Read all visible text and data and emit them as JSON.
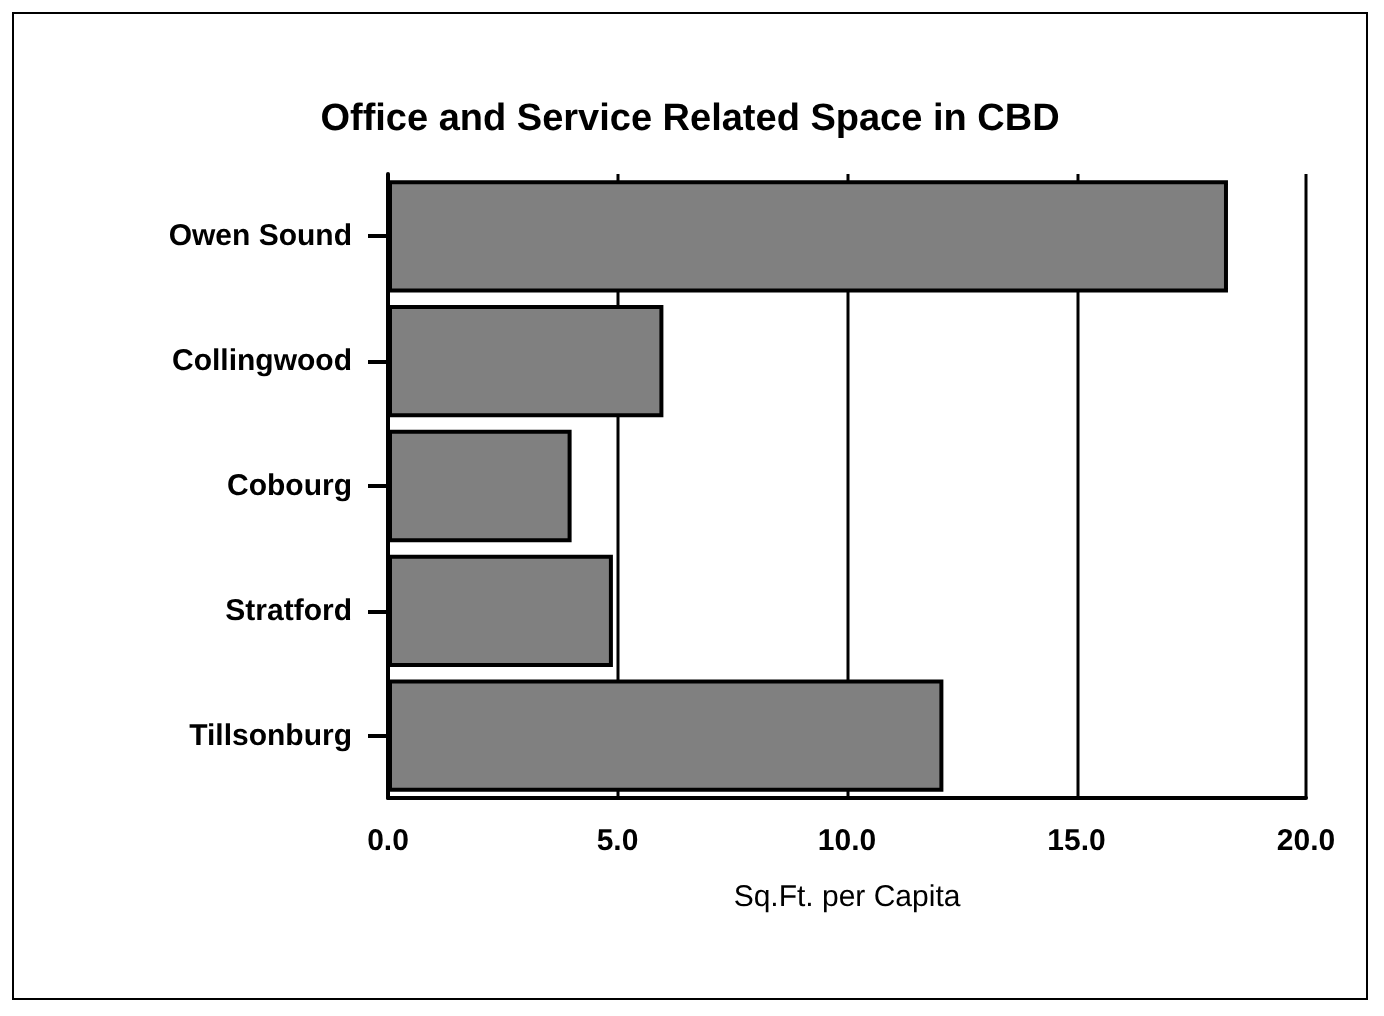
{
  "chart_data": {
    "type": "bar",
    "orientation": "horizontal",
    "title": "Office and Service Related Space in CBD",
    "xlabel": "Sq.Ft. per Capita",
    "categories": [
      "Owen Sound",
      "Collingwood",
      "Cobourg",
      "Stratford",
      "Tillsonburg"
    ],
    "values": [
      18.3,
      6.0,
      4.0,
      4.9,
      12.1
    ],
    "color": "#808080",
    "xlim": [
      0,
      20
    ],
    "xticks": [
      {
        "value": 0,
        "label": "0.0"
      },
      {
        "value": 5,
        "label": "5.0"
      },
      {
        "value": 10,
        "label": "10.0"
      },
      {
        "value": 15,
        "label": "15.0"
      },
      {
        "value": 20,
        "label": "20.0"
      }
    ],
    "grid": "x"
  }
}
